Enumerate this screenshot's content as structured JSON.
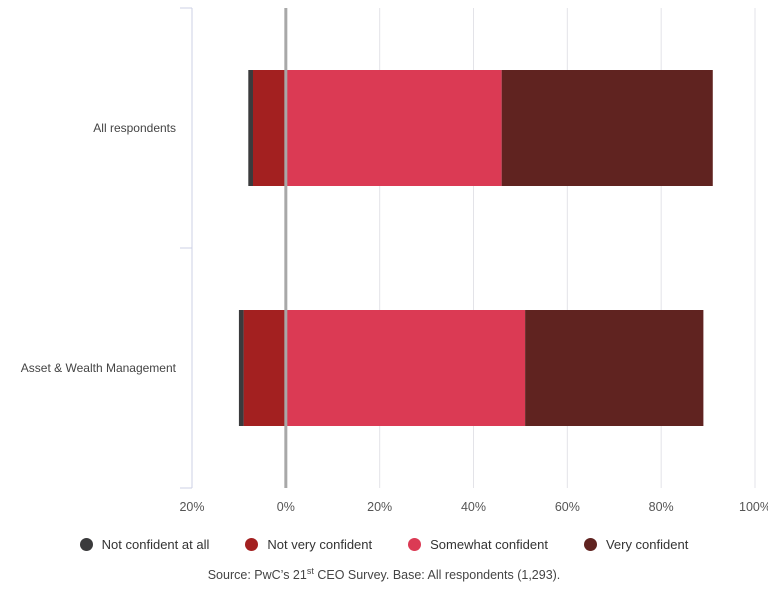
{
  "chart_data": {
    "type": "bar",
    "orientation": "horizontal",
    "stacked": true,
    "diverging": true,
    "categories": [
      "All respondents",
      "Asset & Wealth Management"
    ],
    "series": [
      {
        "name": "Not confident at all",
        "values": [
          -1,
          -1
        ],
        "color": "#3a3a3c"
      },
      {
        "name": "Not very confident",
        "values": [
          -7,
          -9
        ],
        "color": "#a32020"
      },
      {
        "name": "Somewhat confident",
        "values": [
          46,
          51
        ],
        "color": "#db3a54"
      },
      {
        "name": "Very confident",
        "values": [
          45,
          38
        ],
        "color": "#602320"
      }
    ],
    "xticks": [
      "20%",
      "0%",
      "20%",
      "40%",
      "60%",
      "80%",
      "100%"
    ],
    "xlim": [
      -20,
      100
    ],
    "grid": true,
    "legend": "bottom",
    "source": {
      "prefix": "Source: PwC’s 21",
      "sup": "st",
      "suffix": " CEO Survey. Base: All respondents (1,293)."
    }
  }
}
